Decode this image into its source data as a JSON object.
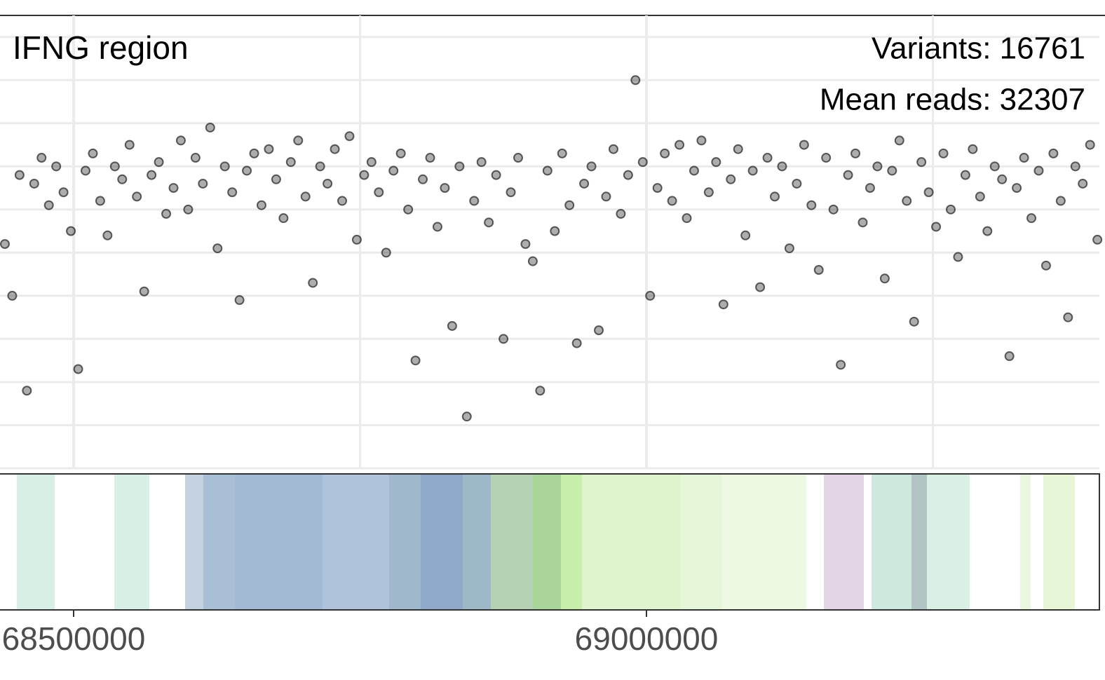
{
  "chart_data": {
    "type": "scatter",
    "title": "IFNG region",
    "annotations": [
      "Variants: 16761",
      "Mean reads: 32307"
    ],
    "color": "#000000",
    "grid": true,
    "xlim": [
      68435740,
      69395350
    ],
    "xticks": [
      68500000,
      69000000
    ],
    "minor_xticks": [
      68750000,
      69250000
    ],
    "ylim": [
      0,
      10.5
    ],
    "yticks": [
      0,
      1,
      2,
      3,
      4,
      5,
      6,
      7,
      8,
      9,
      10
    ],
    "x": [
      68440000,
      68446400,
      68452800,
      68459200,
      68465600,
      68472000,
      68478400,
      68484800,
      68491200,
      68497600,
      68504000,
      68510400,
      68516800,
      68523200,
      68529600,
      68536000,
      68542400,
      68548800,
      68555200,
      68561600,
      68568000,
      68574400,
      68580800,
      68587200,
      68593600,
      68600000,
      68606400,
      68612800,
      68619200,
      68625600,
      68632000,
      68638400,
      68644800,
      68651200,
      68657600,
      68664000,
      68670400,
      68676800,
      68683200,
      68689600,
      68696000,
      68702400,
      68708800,
      68715200,
      68721600,
      68728000,
      68734400,
      68740800,
      68747200,
      68753600,
      68760000,
      68766400,
      68772800,
      68779200,
      68785600,
      68792000,
      68798400,
      68804800,
      68811200,
      68817600,
      68824000,
      68830400,
      68836800,
      68843200,
      68849600,
      68856000,
      68862400,
      68868800,
      68875200,
      68881600,
      68888000,
      68894400,
      68900800,
      68907200,
      68913600,
      68920000,
      68926400,
      68932800,
      68939200,
      68945600,
      68952000,
      68958400,
      68964800,
      68971200,
      68977600,
      68984000,
      68990400,
      68996800,
      69003200,
      69009600,
      69016000,
      69022400,
      69028800,
      69035200,
      69041600,
      69048000,
      69054400,
      69060800,
      69067200,
      69073600,
      69080000,
      69086400,
      69092800,
      69099200,
      69105600,
      69112000,
      69118400,
      69124800,
      69131200,
      69137600,
      69144000,
      69150400,
      69156800,
      69163200,
      69169600,
      69176000,
      69182400,
      69188800,
      69195200,
      69201600,
      69208000,
      69214400,
      69220800,
      69227200,
      69233600,
      69240000,
      69246400,
      69252800,
      69259200,
      69265600,
      69272000,
      69278400,
      69284800,
      69291200,
      69297600,
      69304000,
      69310400,
      69316800,
      69323200,
      69329600,
      69336000,
      69342400,
      69348800,
      69355200,
      69361600,
      69368000,
      69374400,
      69380800,
      69387200,
      69393600
    ],
    "y": [
      5.2,
      4.0,
      6.8,
      1.8,
      6.6,
      7.2,
      6.1,
      7.0,
      6.4,
      5.5,
      2.3,
      6.9,
      7.3,
      6.2,
      5.4,
      7.0,
      6.7,
      7.5,
      6.3,
      4.1,
      6.8,
      7.1,
      5.9,
      6.5,
      7.6,
      6.0,
      7.2,
      6.6,
      7.9,
      5.1,
      7.0,
      6.4,
      3.9,
      6.9,
      7.3,
      6.1,
      7.4,
      6.7,
      5.8,
      7.1,
      7.6,
      6.3,
      4.3,
      7.0,
      6.6,
      7.4,
      6.2,
      7.7,
      5.3,
      6.8,
      7.1,
      6.4,
      5.0,
      6.9,
      7.3,
      6.0,
      2.5,
      6.7,
      7.2,
      5.6,
      6.5,
      3.3,
      7.0,
      1.2,
      6.2,
      7.1,
      5.7,
      6.8,
      3.0,
      6.4,
      7.2,
      5.2,
      4.8,
      1.8,
      6.9,
      5.5,
      7.3,
      6.1,
      2.9,
      6.6,
      7.0,
      3.2,
      6.3,
      7.4,
      5.9,
      6.8,
      9.0,
      7.1,
      4.0,
      6.5,
      7.3,
      6.2,
      7.5,
      5.8,
      6.9,
      7.6,
      6.4,
      7.1,
      3.8,
      6.7,
      7.4,
      5.4,
      6.9,
      4.2,
      7.2,
      6.3,
      7.0,
      5.1,
      6.6,
      7.5,
      6.1,
      4.6,
      7.2,
      6.0,
      2.4,
      6.8,
      7.3,
      5.7,
      6.5,
      7.0,
      4.4,
      6.9,
      7.6,
      6.2,
      3.4,
      7.1,
      6.4,
      5.6,
      7.3,
      6.0,
      4.9,
      6.8,
      7.4,
      6.3,
      5.5,
      7.0,
      6.7,
      2.6,
      6.5,
      7.2,
      5.8,
      6.9,
      4.7,
      7.3,
      6.2,
      3.5,
      7.0,
      6.6,
      7.5,
      5.3
    ],
    "track": [
      {
        "start": 68450428,
        "end": 68483476,
        "color": "#d8efe6"
      },
      {
        "start": 68535496,
        "end": 68566096,
        "color": "#d8efe6"
      },
      {
        "start": 68597308,
        "end": 68613220,
        "color": "#c5d3e0"
      },
      {
        "start": 68613220,
        "end": 68640760,
        "color": "#a9bfd6"
      },
      {
        "start": 68640760,
        "end": 68717260,
        "color": "#a3bad5"
      },
      {
        "start": 68717260,
        "end": 68775400,
        "color": "#afc3da"
      },
      {
        "start": 68775400,
        "end": 68802940,
        "color": "#9fb8cc"
      },
      {
        "start": 68802940,
        "end": 68839660,
        "color": "#8eaac8"
      },
      {
        "start": 68839660,
        "end": 68864140,
        "color": "#9db8c6"
      },
      {
        "start": 68864140,
        "end": 68900860,
        "color": "#b6d2b5"
      },
      {
        "start": 68900860,
        "end": 68925340,
        "color": "#a9d59a"
      },
      {
        "start": 68925340,
        "end": 68943700,
        "color": "#c8eeac"
      },
      {
        "start": 68943700,
        "end": 69029380,
        "color": "#dff4cc"
      },
      {
        "start": 69029380,
        "end": 69066100,
        "color": "#e6f6d8"
      },
      {
        "start": 69066100,
        "end": 69139540,
        "color": "#eef9e4"
      },
      {
        "start": 69154840,
        "end": 69189724,
        "color": "#e3d5e6"
      },
      {
        "start": 69196456,
        "end": 69231340,
        "color": "#cde8dc"
      },
      {
        "start": 69231340,
        "end": 69244804,
        "color": "#b3c4c4"
      },
      {
        "start": 69244804,
        "end": 69282136,
        "color": "#daf0e5"
      },
      {
        "start": 69326200,
        "end": 69335380,
        "color": "#eaf7df"
      },
      {
        "start": 69346396,
        "end": 69373936,
        "color": "#e8f6d8"
      }
    ]
  }
}
